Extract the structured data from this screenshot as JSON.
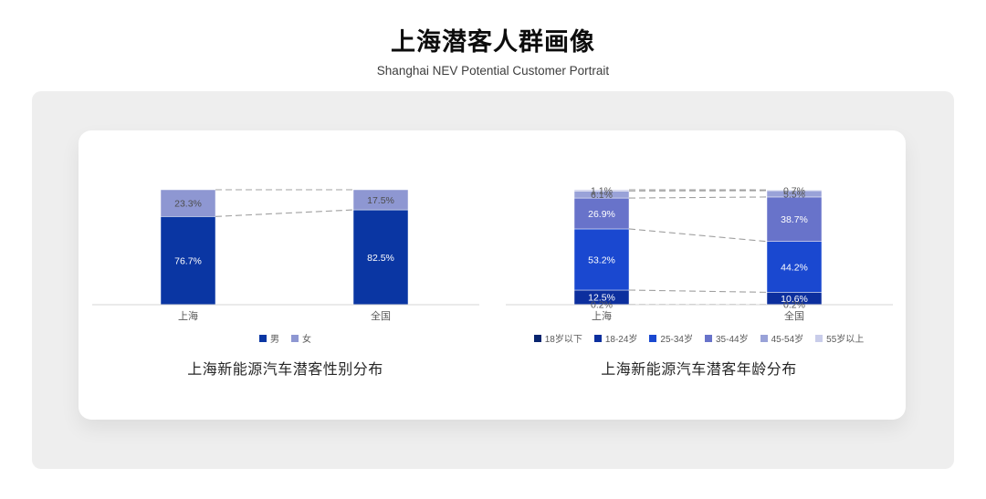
{
  "page": {
    "title": "上海潜客人群画像",
    "subtitle": "Shanghai NEV Potential Customer Portrait"
  },
  "colors": {
    "panel_background": "#eeeeee",
    "card_background": "#ffffff",
    "axis_line": "#d6d6d6",
    "connector_line": "#a0a0a0",
    "category_label": "#595959"
  },
  "chart_data": [
    {
      "type": "bar",
      "stacked": true,
      "title": "上海新能源汽车潜客性别分布",
      "categories": [
        "上海",
        "全国"
      ],
      "series": [
        {
          "name": "男",
          "color": "#0a36a3",
          "label_color": "#ffffff",
          "values": [
            76.7,
            82.5
          ]
        },
        {
          "name": "女",
          "color": "#8e97d2",
          "label_color": "#4d4d4d",
          "values": [
            23.3,
            17.5
          ]
        }
      ],
      "ylim": [
        0,
        100
      ],
      "grid": false,
      "legend_position": "bottom",
      "connectors": "dashed"
    },
    {
      "type": "bar",
      "stacked": true,
      "title": "上海新能源汽车潜客年龄分布",
      "categories": [
        "上海",
        "全国"
      ],
      "series": [
        {
          "name": "18岁以下",
          "color": "#08246e",
          "label_color": "#595959",
          "values": [
            0.2,
            0.2
          ]
        },
        {
          "name": "18-24岁",
          "color": "#0c2f9e",
          "label_color": "#ffffff",
          "values": [
            12.5,
            10.6
          ]
        },
        {
          "name": "25-34岁",
          "color": "#1a48d0",
          "label_color": "#ffffff",
          "values": [
            53.2,
            44.2
          ]
        },
        {
          "name": "35-44岁",
          "color": "#6873ca",
          "label_color": "#ffffff",
          "values": [
            26.9,
            38.7
          ]
        },
        {
          "name": "45-54岁",
          "color": "#99a2d8",
          "label_color": "#595959",
          "values": [
            6.1,
            5.5
          ]
        },
        {
          "name": "55岁以上",
          "color": "#c9cdea",
          "label_color": "#595959",
          "values": [
            1.1,
            0.7
          ]
        }
      ],
      "ylim": [
        0,
        100
      ],
      "grid": false,
      "legend_position": "bottom",
      "connectors": "dashed"
    }
  ]
}
